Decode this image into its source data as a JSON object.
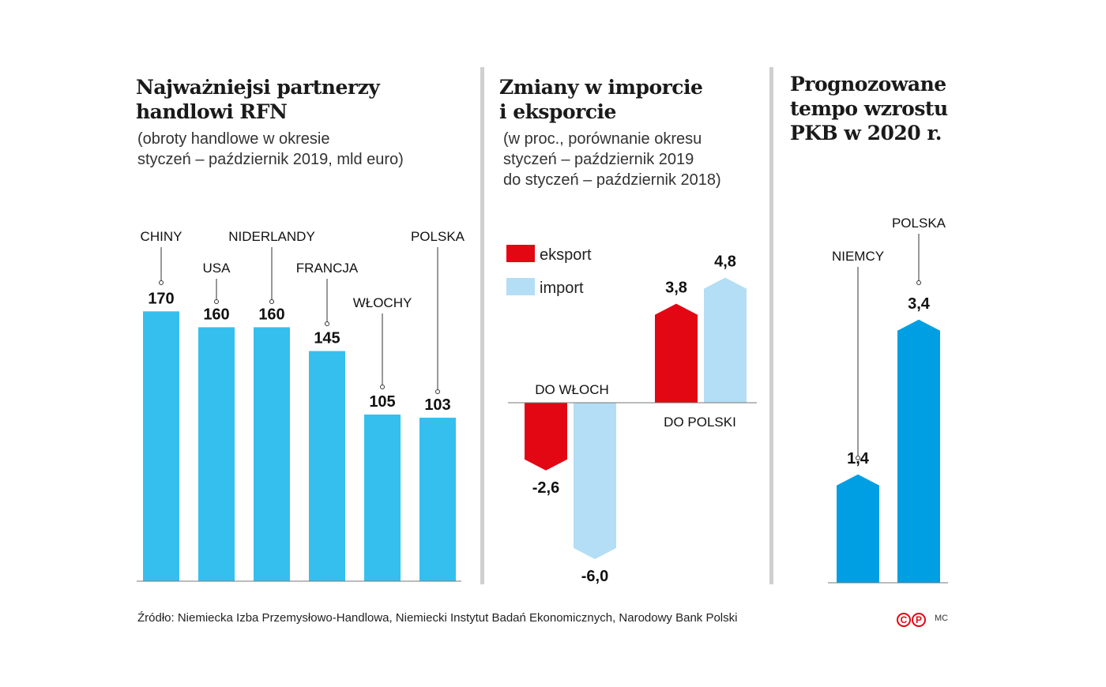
{
  "panel1": {
    "title_lines": [
      "Najważniejsi partnerzy",
      "handlowi RFN"
    ],
    "subtitle_lines": [
      "(obroty handlowe w okresie",
      "styczeń – październik 2019, mld euro)"
    ]
  },
  "panel2": {
    "title_lines": [
      "Zmiany w imporcie",
      "i eksporcie"
    ],
    "subtitle_lines": [
      "(w proc., porównanie okresu",
      "styczeń – październik 2019",
      "do styczeń – październik 2018)"
    ]
  },
  "panel3": {
    "title_lines": [
      "Prognozowane",
      "tempo wzrostu",
      "PKB w 2020 r."
    ]
  },
  "source": "Źródło: Niemiecka Izba Przemysłowo-Handlowa, Niemiecki Instytut Badań Ekonomicznych, Narodowy Bank Polski",
  "logo": {
    "letters": [
      "C",
      "P"
    ]
  },
  "credit": "MC",
  "chart_data": [
    {
      "type": "bar",
      "categories": [
        "CHINY",
        "USA",
        "NIDERLANDY",
        "FRANCJA",
        "WŁOCHY",
        "POLSKA"
      ],
      "values": [
        170,
        160,
        160,
        145,
        105,
        103
      ],
      "value_labels": [
        "170",
        "160",
        "160",
        "145",
        "105",
        "103"
      ],
      "color": "#35bfef"
    },
    {
      "type": "bar",
      "categories": [
        "DO WŁOCH",
        "DO POLSKI"
      ],
      "series": [
        {
          "name": "eksport",
          "values": [
            -2.6,
            3.8
          ],
          "value_labels": [
            "-2,6",
            "3,8"
          ],
          "color": "#e30613"
        },
        {
          "name": "import",
          "values": [
            -6.0,
            4.8
          ],
          "value_labels": [
            "-6,0",
            "4,8"
          ],
          "color": "#b3def5"
        }
      ],
      "legend": "top-left"
    },
    {
      "type": "bar",
      "categories": [
        "NIEMCY",
        "POLSKA"
      ],
      "values": [
        1.4,
        3.4
      ],
      "value_labels": [
        "1,4",
        "3,4"
      ],
      "color": "#009fe3"
    }
  ]
}
